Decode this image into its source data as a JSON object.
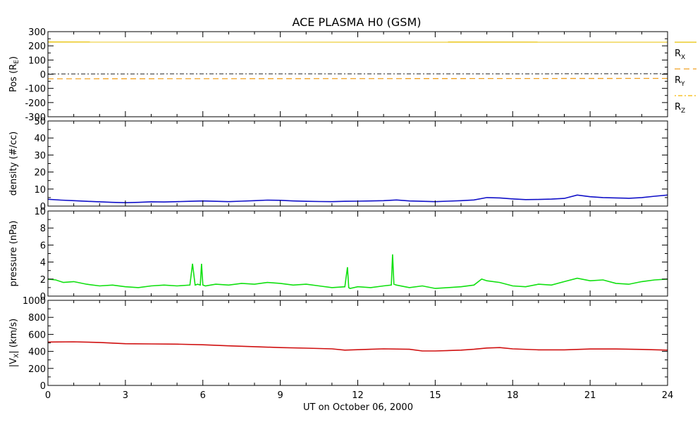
{
  "title": "ACE PLASMA H0 (GSM)",
  "xlabel": "UT on October 06, 2000",
  "x_ticks": [
    "0",
    "3",
    "6",
    "9",
    "12",
    "15",
    "18",
    "21",
    "24"
  ],
  "colors": {
    "rx": "#e8c000",
    "ry": "#f0a020",
    "rz": "#f5b800",
    "density": "#1010c8",
    "pressure": "#10e010",
    "vx": "#d01010"
  },
  "chart_data": [
    {
      "type": "line",
      "panel": "position",
      "ylabel": "Pos (RE)",
      "ylim": [
        -300,
        300
      ],
      "y_ticks": [
        "300",
        "200",
        "100",
        "0",
        "-100",
        "-200",
        "-300"
      ],
      "xlim": [
        0,
        24
      ],
      "series": [
        {
          "name": "RX",
          "x": [
            0,
            24
          ],
          "values": [
            227,
            226
          ],
          "style": "solid"
        },
        {
          "name": "RY",
          "x": [
            0,
            24
          ],
          "values": [
            -32,
            -30
          ],
          "style": "dashed"
        },
        {
          "name": "RZ",
          "x": [
            0,
            24
          ],
          "values": [
            2,
            3
          ],
          "style": "dashdot"
        }
      ],
      "legend": [
        "RX",
        "RY",
        "RZ"
      ],
      "legend_placement": "right"
    },
    {
      "type": "line",
      "panel": "density",
      "ylabel": "density (#/cc)",
      "ylim": [
        0,
        50
      ],
      "y_ticks": [
        "50",
        "40",
        "30",
        "20",
        "10",
        "0"
      ],
      "xlim": [
        0,
        24
      ],
      "series": [
        {
          "name": "density",
          "x": [
            0,
            0.5,
            1,
            1.5,
            2,
            2.5,
            3,
            3.5,
            4,
            4.5,
            5,
            5.5,
            6,
            6.5,
            7,
            7.5,
            8,
            8.5,
            9,
            9.5,
            10,
            10.5,
            11,
            11.5,
            12,
            12.5,
            13,
            13.5,
            14,
            14.5,
            15,
            15.5,
            16,
            16.5,
            17,
            17.5,
            18,
            18.5,
            19,
            19.5,
            20,
            20.5,
            21,
            21.5,
            22,
            22.5,
            23,
            23.5,
            24
          ],
          "values": [
            4,
            3.5,
            3.2,
            2.8,
            2.5,
            2.2,
            2.0,
            2.2,
            2.5,
            2.4,
            2.6,
            2.8,
            3.0,
            2.8,
            2.6,
            2.9,
            3.2,
            3.5,
            3.4,
            3.0,
            2.8,
            2.7,
            2.6,
            2.8,
            2.9,
            3.0,
            3.2,
            3.6,
            3.0,
            2.8,
            2.6,
            2.9,
            3.2,
            3.6,
            5.0,
            4.8,
            4.2,
            3.8,
            3.9,
            4.1,
            4.5,
            6.5,
            5.5,
            5.0,
            4.8,
            4.6,
            5.0,
            5.8,
            6.5
          ]
        }
      ]
    },
    {
      "type": "line",
      "panel": "pressure",
      "ylabel": "pressure (nPa)",
      "ylim": [
        0,
        10
      ],
      "y_ticks": [
        "10",
        "8",
        "6",
        "4",
        "2",
        "0"
      ],
      "xlim": [
        0,
        24
      ],
      "series": [
        {
          "name": "pressure",
          "x": [
            0,
            0.3,
            0.6,
            1,
            1.5,
            2,
            2.5,
            3,
            3.5,
            4,
            4.5,
            5,
            5.5,
            5.6,
            5.7,
            5.8,
            5.9,
            5.95,
            6.0,
            6.1,
            6.5,
            7,
            7.5,
            8,
            8.5,
            9,
            9.5,
            10,
            10.5,
            11,
            11.5,
            11.6,
            11.65,
            11.7,
            12,
            12.5,
            13,
            13.3,
            13.35,
            13.4,
            13.5,
            14,
            14.5,
            15,
            15.5,
            16,
            16.5,
            16.8,
            17,
            17.5,
            18,
            18.5,
            19,
            19.5,
            20,
            20.5,
            21,
            21.5,
            22,
            22.5,
            23,
            23.5,
            24
          ],
          "values": [
            2.0,
            1.9,
            1.6,
            1.7,
            1.4,
            1.2,
            1.3,
            1.1,
            1.0,
            1.2,
            1.3,
            1.2,
            1.3,
            3.8,
            1.3,
            1.4,
            1.3,
            3.8,
            1.3,
            1.2,
            1.4,
            1.3,
            1.5,
            1.4,
            1.6,
            1.5,
            1.3,
            1.4,
            1.2,
            1.0,
            1.1,
            3.4,
            1.0,
            0.9,
            1.1,
            1.0,
            1.2,
            1.3,
            4.9,
            1.4,
            1.3,
            1.0,
            1.2,
            0.9,
            1.0,
            1.1,
            1.3,
            2.0,
            1.8,
            1.6,
            1.2,
            1.1,
            1.4,
            1.3,
            1.7,
            2.1,
            1.8,
            1.9,
            1.5,
            1.4,
            1.7,
            1.9,
            2.0
          ]
        }
      ]
    },
    {
      "type": "line",
      "panel": "velocity",
      "ylabel": "|VX| (km/s)",
      "ylim": [
        0,
        1000
      ],
      "y_ticks": [
        "1000",
        "800",
        "600",
        "400",
        "200",
        "0"
      ],
      "xlim": [
        0,
        24
      ],
      "series": [
        {
          "name": "|VX|",
          "x": [
            0,
            1,
            2,
            3,
            4,
            5,
            6,
            7,
            8,
            9,
            10,
            11,
            11.5,
            12,
            12.5,
            13,
            14,
            14.5,
            15,
            16,
            16.5,
            17,
            17.5,
            18,
            19,
            20,
            21,
            22,
            23,
            24
          ],
          "values": [
            510,
            512,
            505,
            490,
            488,
            485,
            478,
            465,
            455,
            445,
            438,
            430,
            415,
            420,
            425,
            430,
            425,
            405,
            405,
            415,
            425,
            440,
            445,
            430,
            418,
            418,
            428,
            428,
            423,
            415
          ]
        }
      ]
    }
  ]
}
